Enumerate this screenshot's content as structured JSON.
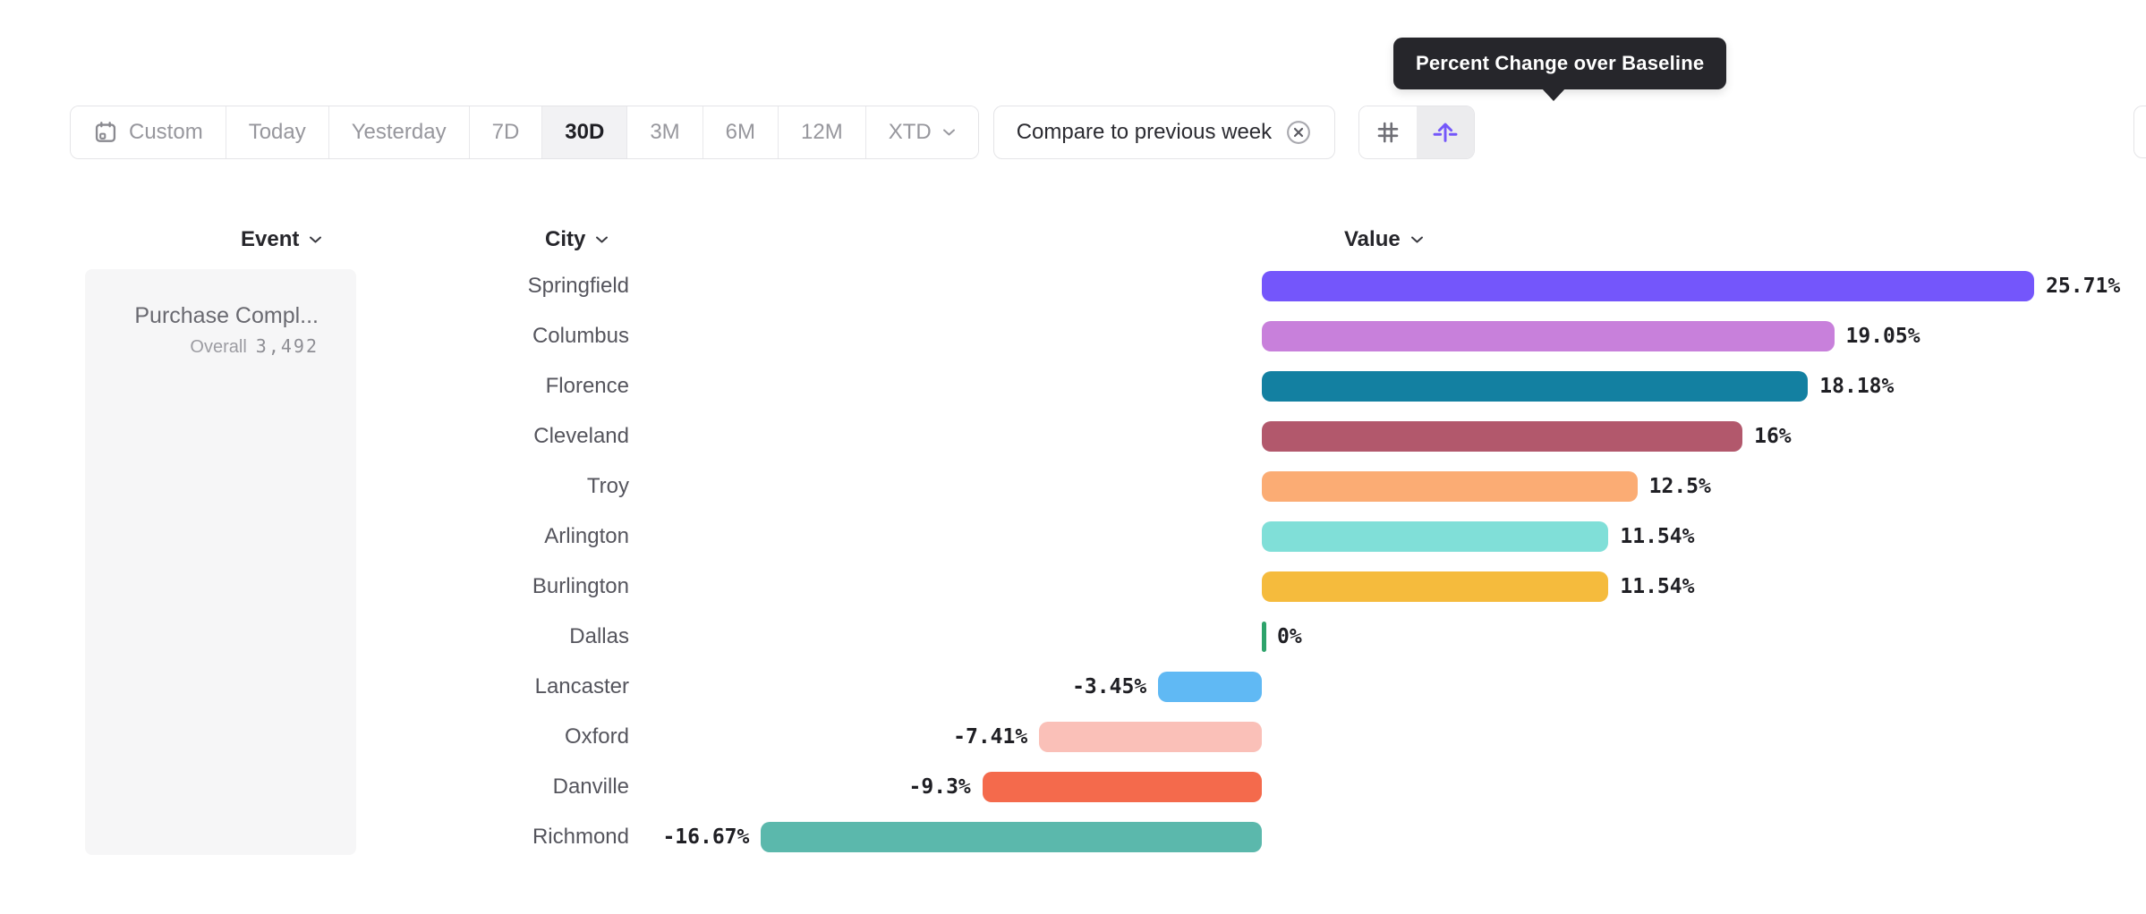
{
  "tooltip": {
    "text": "Percent Change over Baseline"
  },
  "toolbar": {
    "date_ranges": [
      {
        "label": "Custom",
        "icon": "calendar-icon",
        "selected": false
      },
      {
        "label": "Today",
        "selected": false
      },
      {
        "label": "Yesterday",
        "selected": false
      },
      {
        "label": "7D",
        "selected": false
      },
      {
        "label": "30D",
        "selected": true
      },
      {
        "label": "3M",
        "selected": false
      },
      {
        "label": "6M",
        "selected": false
      },
      {
        "label": "12M",
        "selected": false
      },
      {
        "label": "XTD",
        "chevron": true,
        "selected": false
      }
    ],
    "compare_label": "Compare to previous week",
    "view_toggles": [
      {
        "name": "grid-view",
        "icon": "grid-icon",
        "selected": false
      },
      {
        "name": "uplift-view",
        "icon": "uplift-icon",
        "selected": true
      }
    ]
  },
  "columns": {
    "event": "Event",
    "city": "City",
    "value": "Value"
  },
  "event_card": {
    "name": "Purchase Compl...",
    "overall_label": "Overall",
    "overall_value": "3,492"
  },
  "chart_data": {
    "type": "bar",
    "orientation": "horizontal",
    "title": "Percent Change over Baseline",
    "xlabel": "Value",
    "ylabel": "City",
    "baseline": 0,
    "xlim": [
      -16.67,
      25.71
    ],
    "categories": [
      "Springfield",
      "Columbus",
      "Florence",
      "Cleveland",
      "Troy",
      "Arlington",
      "Burlington",
      "Dallas",
      "Lancaster",
      "Oxford",
      "Danville",
      "Richmond"
    ],
    "values": [
      25.71,
      19.05,
      18.18,
      16,
      12.5,
      11.54,
      11.54,
      0,
      -3.45,
      -7.41,
      -9.3,
      -16.67
    ],
    "value_labels": [
      "25.71%",
      "19.05%",
      "18.18%",
      "16%",
      "12.5%",
      "11.54%",
      "11.54%",
      "0%",
      "-3.45%",
      "-7.41%",
      "-9.3%",
      "-16.67%"
    ],
    "bar_colors": [
      "#7456FB",
      "#C880DB",
      "#1380A1",
      "#B2586C",
      "#FBAC74",
      "#80DFD8",
      "#F5BB3D",
      "#2EA36B",
      "#60B9F4",
      "#FAC0B8",
      "#F46A4C",
      "#5BB8AC"
    ]
  },
  "colors": {
    "accent_purple": "#7456FB",
    "zero_tick_green": "#2EA36B",
    "tooltip_bg": "#26262b",
    "selected_segment_bg": "#f2f2f4",
    "border": "#e4e4e7",
    "card_bg": "#f6f6f7"
  }
}
